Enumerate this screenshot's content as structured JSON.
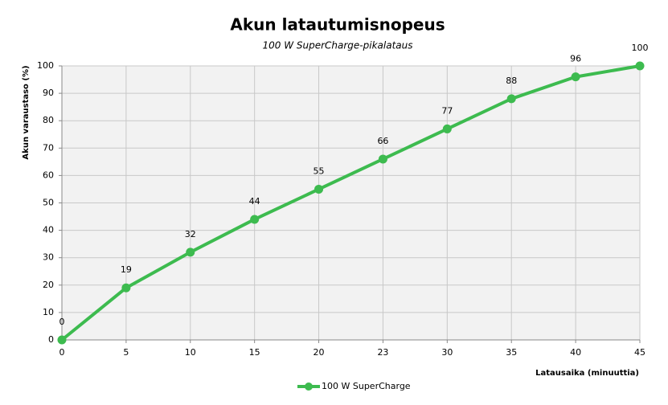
{
  "chart_data": {
    "type": "line",
    "title": "Akun latautumisnopeus",
    "subtitle": "100 W SuperCharge-pikalataus",
    "x_label": "Latausaika  (minuuttia)",
    "y_label": "Akun varaustaso  (%)",
    "categories": [
      "0",
      "5",
      "10",
      "15",
      "20",
      "23",
      "30",
      "35",
      "40",
      "45"
    ],
    "series": [
      {
        "name": "100 W SuperCharge",
        "color": "#3dbb4f",
        "values": [
          0,
          19,
          32,
          44,
          55,
          66,
          77,
          88,
          96,
          100
        ]
      }
    ],
    "ylim": [
      0,
      100
    ],
    "yticks": [
      0,
      10,
      20,
      30,
      40,
      50,
      60,
      70,
      80,
      90,
      100
    ],
    "grid": true,
    "legend": "bottom"
  }
}
